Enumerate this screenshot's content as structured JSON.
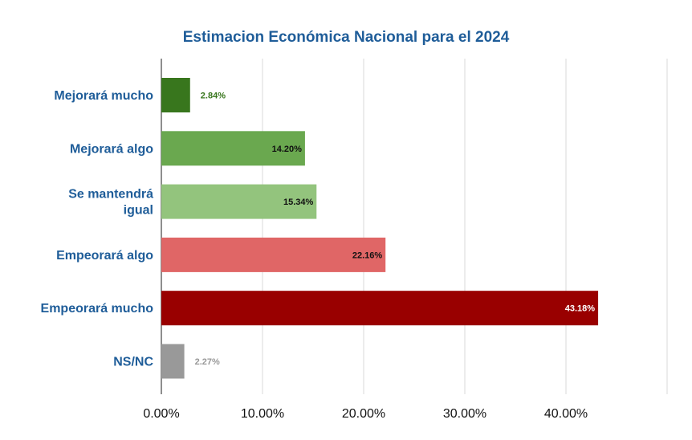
{
  "chart_data": {
    "type": "bar",
    "orientation": "horizontal",
    "title": "Estimacion Económica Nacional para el 2024",
    "categories": [
      [
        "Mejorará mucho"
      ],
      [
        "Mejorará algo"
      ],
      [
        "Se mantendrá",
        "igual"
      ],
      [
        "Empeorará algo"
      ],
      [
        "Empeorará mucho"
      ],
      [
        "NS/NC"
      ]
    ],
    "values": [
      2.84,
      14.2,
      15.34,
      22.16,
      43.18,
      2.27
    ],
    "data_labels": [
      "2.84%",
      "14.20%",
      "15.34%",
      "22.16%",
      "43.18%",
      "2.27%"
    ],
    "bar_colors": [
      "#38761d",
      "#6aa84f",
      "#93c47d",
      "#e06666",
      "#990000",
      "#999999"
    ],
    "label_colors": [
      "#38761d",
      "#111111",
      "#111111",
      "#111111",
      "#ffffff",
      "#999999"
    ],
    "label_inside": [
      false,
      true,
      true,
      true,
      true,
      false
    ],
    "xlim": [
      0,
      50
    ],
    "xticks": [
      0,
      10,
      20,
      30,
      40,
      50
    ],
    "xtick_labels": [
      "0.00%",
      "10.00%",
      "20.00%",
      "30.00%",
      "40.00%",
      ""
    ],
    "grid": true,
    "title_color": "#1f5d99",
    "category_label_color": "#1f5d99",
    "gridline_color": "#d9d9d9"
  }
}
